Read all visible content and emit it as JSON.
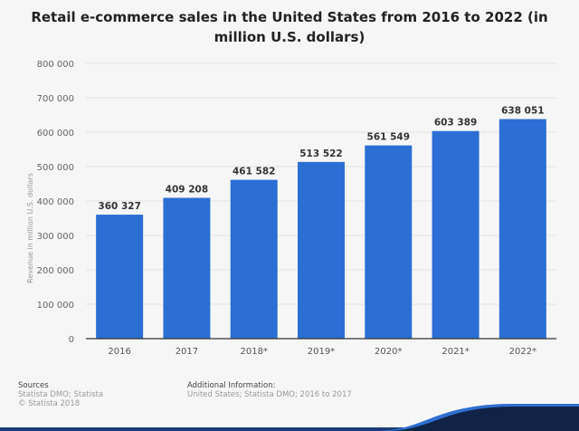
{
  "chart_data": {
    "type": "bar",
    "title": "Retail e-commerce sales in the United States from 2016 to 2022 (in million U.S. dollars)",
    "xlabel": "",
    "ylabel": "Revenue in million U.S. dollars",
    "categories": [
      "2016",
      "2017",
      "2018*",
      "2019*",
      "2020*",
      "2021*",
      "2022*"
    ],
    "values": [
      360327,
      409208,
      461582,
      513522,
      561549,
      603389,
      638051
    ],
    "data_labels": [
      "360 327",
      "409 208",
      "461 582",
      "513 522",
      "561 549",
      "603 389",
      "638 051"
    ],
    "ylim": [
      0,
      800000
    ],
    "yticks": [
      0,
      100000,
      200000,
      300000,
      400000,
      500000,
      600000,
      700000,
      800000
    ],
    "ytick_labels": [
      "0",
      "100 000",
      "200 000",
      "300 000",
      "400 000",
      "500 000",
      "600 000",
      "700 000",
      "800 000"
    ],
    "grid": true,
    "bar_color": "#2b6fd4"
  },
  "footer": {
    "sources_heading": "Sources",
    "sources_lines": [
      "Statista DMO; Statista",
      "© Statista 2018"
    ],
    "additional_heading": "Additional Information:",
    "additional_text": "United States; Statista DMO; 2016 to 2017"
  }
}
